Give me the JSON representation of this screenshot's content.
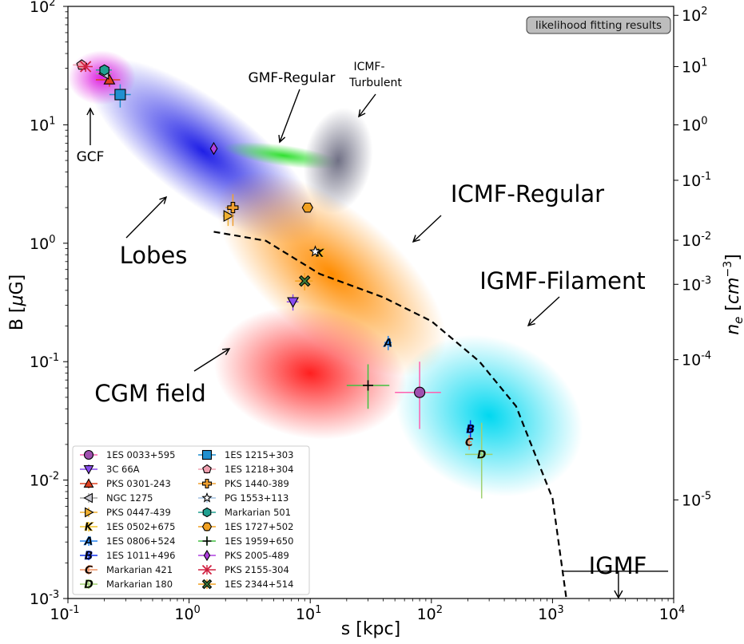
{
  "chart_data": {
    "type": "scatter",
    "title": "",
    "xlabel": "s [kpc]",
    "ylabel": "B [μG]",
    "y2label": "n_e [cm^-3]",
    "xscale": "log",
    "yscale": "log",
    "xlim": [
      0.1,
      10000
    ],
    "ylim": [
      0.001,
      100
    ],
    "x_ticks": [
      "10^-1",
      "10^0",
      "10^1",
      "10^2",
      "10^3",
      "10^4"
    ],
    "y_ticks": [
      "10^-3",
      "10^-2",
      "10^-1",
      "10^0",
      "10^1",
      "10^2"
    ],
    "y2_ticks": [
      {
        "label": "10^-5",
        "value": 1e-05,
        "B": 0.0068
      },
      {
        "label": "10^-4",
        "value": 0.0001,
        "B": 0.104
      },
      {
        "label": "10^-3",
        "value": 0.001,
        "B": 0.45
      },
      {
        "label": "10^-2",
        "value": 0.01,
        "B": 1.06
      },
      {
        "label": "10^-1",
        "value": 0.1,
        "B": 3.4
      },
      {
        "label": "10^0",
        "value": 1,
        "B": 10
      },
      {
        "label": "10^1",
        "value": 10,
        "B": 31
      },
      {
        "label": "10^2",
        "value": 100,
        "B": 84
      }
    ],
    "badge": "likelihood fitting results",
    "regions": [
      {
        "label": "Lobes",
        "color": "#1f1fe6",
        "cx": 1.3,
        "cy": 6,
        "rx_dex": 1.15,
        "ry_dex": 0.42,
        "angle": 37
      },
      {
        "label": "GCF",
        "color": "#e020e0",
        "cx": 0.19,
        "cy": 25,
        "rx_dex": 0.28,
        "ry_dex": 0.23,
        "angle": 0
      },
      {
        "label": "GMF-Regular",
        "color": "#30e030",
        "cx": 6,
        "cy": 5.5,
        "rx_dex": 0.5,
        "ry_dex": 0.09,
        "angle": 8
      },
      {
        "label": "ICMF-Turbulent",
        "color": "#707085",
        "cx": 17,
        "cy": 5,
        "rx_dex": 0.28,
        "ry_dex": 0.45,
        "angle": 10
      },
      {
        "label": "ICMF-Regular",
        "color": "#ff8c00",
        "cx": 15,
        "cy": 0.55,
        "rx_dex": 1.15,
        "ry_dex": 0.55,
        "angle": 40
      },
      {
        "label": "CGM field",
        "color": "#ff1f1f",
        "cx": 10,
        "cy": 0.08,
        "rx_dex": 0.8,
        "ry_dex": 0.55,
        "angle": 10
      },
      {
        "label": "IGMF-Filament",
        "color": "#00d8f0",
        "cx": 300,
        "cy": 0.035,
        "rx_dex": 0.8,
        "ry_dex": 0.65,
        "angle": 25
      }
    ],
    "annotations": [
      {
        "text": "GCF",
        "size": "mid"
      },
      {
        "text": "Lobes",
        "size": "big"
      },
      {
        "text": "GMF-Regular",
        "size": "mid"
      },
      {
        "text": "ICMF-",
        "size": "small"
      },
      {
        "text": "Turbulent",
        "size": "small"
      },
      {
        "text": "ICMF-Regular",
        "size": "big"
      },
      {
        "text": "IGMF-Filament",
        "size": "big"
      },
      {
        "text": "CGM field",
        "size": "big"
      },
      {
        "text": "IGMF",
        "size": "big"
      }
    ],
    "limit_line": {
      "style": "dashed",
      "x": [
        1.6,
        4.3,
        12,
        40,
        100,
        250,
        500,
        1000,
        1300
      ],
      "y": [
        1.25,
        1.05,
        0.55,
        0.35,
        0.22,
        0.1,
        0.042,
        0.007,
        0.001
      ]
    },
    "igmf_limit": {
      "x_start": 1200,
      "x_end": 9000,
      "y": 0.0017,
      "arrow_x": 3500,
      "arrow_to": 0.001
    },
    "series": [
      {
        "name": "1ES 0033+595",
        "marker": "o",
        "color": "#a050b0",
        "x": 80,
        "y": 0.055,
        "xerr": [
          30,
          40
        ],
        "yerr": [
          0.028,
          0.045
        ],
        "errcolor": "#ff60b0"
      },
      {
        "name": "3C 66A",
        "marker": "v",
        "color": "#8a4cf0",
        "x": 7.2,
        "y": 0.32,
        "xerr": [
          0.8,
          0.8
        ],
        "yerr": [
          0.05,
          0.05
        ],
        "errcolor": "#8a4cf0"
      },
      {
        "name": "PKS 0301-243",
        "marker": "^",
        "color": "#e04020",
        "x": 0.22,
        "y": 24,
        "xerr": [
          0.05,
          0.05
        ],
        "yerr": [
          3,
          3
        ],
        "errcolor": "#e04020"
      },
      {
        "name": "NGC 1275",
        "marker": "<",
        "color": "#c8c8d0",
        "x": 0.2,
        "y": 27,
        "xerr": [
          0.03,
          0.03
        ],
        "yerr": [
          2,
          2
        ],
        "errcolor": "#a0a0a0"
      },
      {
        "name": "PKS 0447-439",
        "marker": ">",
        "color": "#f0b030",
        "x": 2.1,
        "y": 1.7,
        "xerr": [
          0.2,
          0.2
        ],
        "yerr": [
          0.3,
          0.3
        ],
        "errcolor": "#f0b030"
      },
      {
        "name": "1ES 0502+675",
        "marker": "K",
        "color": "#f0c020",
        "x": 12,
        "y": 0.83,
        "xerr": [
          0.8,
          0.8
        ],
        "yerr": [
          0.05,
          0.05
        ],
        "errcolor": "#f0c020"
      },
      {
        "name": "1ES 0806+524",
        "marker": "A",
        "color": "#2080f0",
        "x": 44,
        "y": 0.145,
        "xerr": [
          3,
          3
        ],
        "yerr": [
          0.02,
          0.02
        ],
        "errcolor": "#2080f0"
      },
      {
        "name": "1ES 1011+496",
        "marker": "B",
        "color": "#1030f0",
        "x": 210,
        "y": 0.027,
        "xerr": [
          15,
          15
        ],
        "yerr": [
          0.005,
          0.005
        ],
        "errcolor": "#1030f0"
      },
      {
        "name": "Markarian 421",
        "marker": "C",
        "color": "#f09060",
        "x": 205,
        "y": 0.021,
        "xerr": [
          10,
          10
        ],
        "yerr": [
          0.003,
          0.003
        ],
        "errcolor": "#f09060"
      },
      {
        "name": "Markarian 180",
        "marker": "D",
        "color": "#a0d070",
        "x": 260,
        "y": 0.0165,
        "xerr": [
          70,
          60
        ],
        "yerr": [
          0.0095,
          0.014
        ],
        "errcolor": "#a0d070"
      },
      {
        "name": "1ES 1215+303",
        "marker": "s",
        "color": "#2090d0",
        "x": 0.27,
        "y": 18,
        "xerr": [
          0.05,
          0.06
        ],
        "yerr": [
          4,
          4
        ],
        "errcolor": "#2090d0"
      },
      {
        "name": "1ES 1218+304",
        "marker": "p",
        "color": "#f0a0b0",
        "x": 0.13,
        "y": 32,
        "xerr": [
          0.02,
          0.02
        ],
        "yerr": [
          3,
          3
        ],
        "errcolor": "#f0a0b0"
      },
      {
        "name": "PKS 1440-389",
        "marker": "P",
        "color": "#f0a030",
        "x": 2.3,
        "y": 2.0,
        "xerr": [
          0.3,
          0.3
        ],
        "yerr": [
          0.6,
          0.6
        ],
        "errcolor": "#f0a030"
      },
      {
        "name": "PG 1553+113",
        "marker": "*",
        "color": "#ffffff",
        "x": 11,
        "y": 0.85,
        "xerr": [
          0.5,
          0.5
        ],
        "yerr": [
          0.05,
          0.05
        ],
        "errcolor": "#a0c0e0"
      },
      {
        "name": "Markarian 501",
        "marker": "h",
        "color": "#20a090",
        "x": 0.2,
        "y": 29,
        "xerr": [
          0.03,
          0.03
        ],
        "yerr": [
          3,
          3
        ],
        "errcolor": "#20a090"
      },
      {
        "name": "1ES 1727+502",
        "marker": "H",
        "color": "#f0a020",
        "x": 9.5,
        "y": 2.0,
        "xerr": [
          0.3,
          0.3
        ],
        "yerr": [
          0.1,
          0.1
        ],
        "errcolor": "#f0a020"
      },
      {
        "name": "1ES 1959+650",
        "marker": "+",
        "color": "#40c040",
        "x": 30,
        "y": 0.063,
        "xerr": [
          10,
          15
        ],
        "yerr": [
          0.023,
          0.032
        ],
        "errcolor": "#40c040"
      },
      {
        "name": "PKS 2005-489",
        "marker": "d",
        "color": "#b040e0",
        "x": 1.6,
        "y": 6.3,
        "xerr": [
          0.05,
          0.05
        ],
        "yerr": [
          0.5,
          0.5
        ],
        "errcolor": "#b040e0"
      },
      {
        "name": "PKS 2155-304",
        "marker": "x",
        "color": "#d02040",
        "x": 0.14,
        "y": 31,
        "xerr": [
          0.02,
          0.02
        ],
        "yerr": [
          3,
          3
        ],
        "errcolor": "#d02040"
      },
      {
        "name": "1ES 2344+514",
        "marker": "X",
        "color": "#3a7a3a",
        "x": 9.0,
        "y": 0.48,
        "xerr": [
          1.5,
          1.5
        ],
        "yerr": [
          0.08,
          0.08
        ],
        "errcolor": "#f0a020"
      }
    ]
  }
}
